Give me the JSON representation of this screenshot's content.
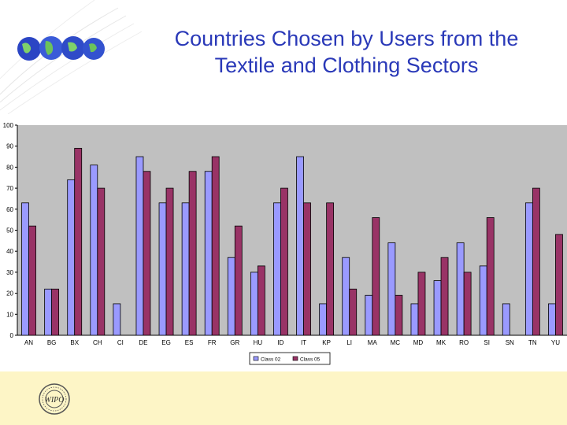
{
  "slide": {
    "title_line1": "Countries Chosen by Users from the",
    "title_line2": "Textile and Clothing Sectors",
    "logo_text": "WIPO"
  },
  "colors": {
    "title": "#2a39b8",
    "series1": "#9a9aff",
    "series2": "#993366",
    "plot_bg": "#c0c0c0",
    "footer_bg": "#fdf5c6"
  },
  "chart_data": {
    "type": "bar",
    "categories": [
      "AN",
      "BG",
      "BX",
      "CH",
      "CI",
      "DE",
      "EG",
      "ES",
      "FR",
      "GR",
      "HU",
      "ID",
      "IT",
      "KP",
      "LI",
      "MA",
      "MC",
      "MD",
      "MK",
      "RO",
      "SI",
      "SN",
      "TN",
      "YU"
    ],
    "series": [
      {
        "name": "Class 02",
        "values": [
          63,
          22,
          74,
          81,
          15,
          85,
          63,
          63,
          78,
          37,
          30,
          63,
          85,
          15,
          37,
          19,
          44,
          15,
          26,
          44,
          33,
          15,
          63,
          15
        ]
      },
      {
        "name": "Class 05",
        "values": [
          52,
          22,
          89,
          70,
          0,
          78,
          70,
          78,
          85,
          52,
          33,
          70,
          63,
          63,
          22,
          56,
          19,
          30,
          37,
          30,
          56,
          0,
          70,
          48
        ]
      }
    ],
    "y_ticks": [
      "0",
      "10",
      "20",
      "30",
      "40",
      "50",
      "60",
      "70",
      "80",
      "90",
      "100"
    ],
    "ylim": [
      0,
      100
    ],
    "grid": false,
    "legend": "bottom"
  }
}
